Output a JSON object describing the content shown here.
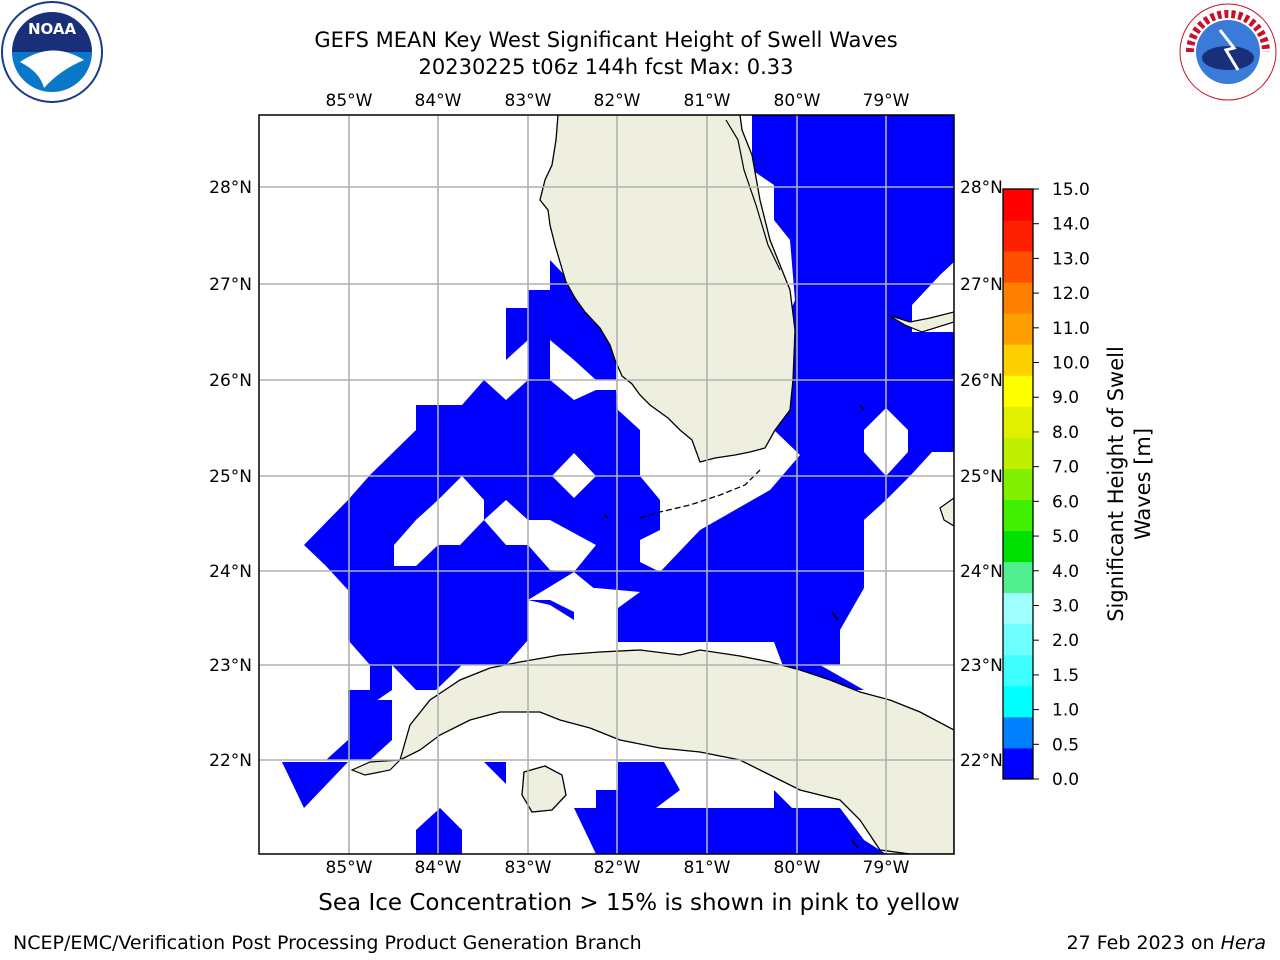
{
  "title": {
    "line1": "GEFS MEAN Key West Significant Height of Swell Waves",
    "line2": "20230225 t06z 144h fcst   Max: 0.33"
  },
  "logos": {
    "left": "noaa-logo",
    "right": "national-weather-service-logo"
  },
  "map": {
    "lon_labels": [
      "85°W",
      "84°W",
      "83°W",
      "82°W",
      "81°W",
      "80°W",
      "79°W"
    ],
    "lat_labels": [
      "28°N",
      "27°N",
      "26°N",
      "25°N",
      "24°N",
      "23°N",
      "22°N"
    ],
    "land_color": "#efefdf",
    "wave_color": "#0000ff",
    "ocean_color": "#ffffff",
    "grid_color": "#b0b0b0"
  },
  "colorbar": {
    "label": "Significant Height of Swell Waves [m]",
    "ticks": [
      "0.0",
      "0.5",
      "1.0",
      "1.5",
      "2.0",
      "3.0",
      "4.0",
      "5.0",
      "6.0",
      "7.0",
      "8.0",
      "9.0",
      "10.0",
      "11.0",
      "12.0",
      "13.0",
      "14.0",
      "15.0"
    ],
    "colors": [
      "#0000ff",
      "#0080ff",
      "#00ffff",
      "#40ffff",
      "#70ffff",
      "#a0ffff",
      "#50f090",
      "#00e000",
      "#40f000",
      "#80f000",
      "#c0f000",
      "#e0f000",
      "#ffff00",
      "#ffd000",
      "#ffa000",
      "#ff8000",
      "#ff5000",
      "#ff2000",
      "#ff0000"
    ]
  },
  "ice_note": "Sea Ice Concentration > 15% is shown in pink to yellow",
  "footer": {
    "left": "NCEP/EMC/Verification Post Processing Product Generation Branch",
    "right_prefix": "27 Feb 2023 on ",
    "right_host": "Hera"
  }
}
